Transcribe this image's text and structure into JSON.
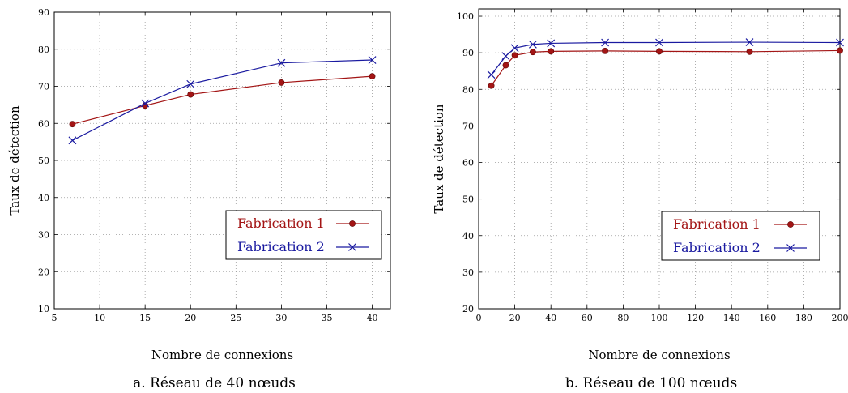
{
  "colors": {
    "series1": "#a31515",
    "series2": "#1a1aa0",
    "grid": "#9a9a9a"
  },
  "chart_data": [
    {
      "type": "line",
      "caption": "a. Réseau de 40 nœuds",
      "xlabel": "Nombre de connexions",
      "ylabel": "Taux de détection",
      "xlim": [
        5,
        42
      ],
      "ylim": [
        10,
        90
      ],
      "xticks": [
        5,
        10,
        15,
        20,
        25,
        30,
        35,
        40
      ],
      "yticks": [
        10,
        20,
        30,
        40,
        50,
        60,
        70,
        80,
        90
      ],
      "grid": true,
      "legend_position": "bottom-right",
      "series": [
        {
          "name": "Fabrication 1",
          "marker": "dot",
          "x": [
            7,
            15,
            20,
            30,
            40
          ],
          "y": [
            59.8,
            64.8,
            67.8,
            71.0,
            72.7
          ]
        },
        {
          "name": "Fabrication 2",
          "marker": "cross",
          "x": [
            7,
            15,
            20,
            30,
            40
          ],
          "y": [
            55.4,
            65.4,
            70.6,
            76.3,
            77.1
          ]
        }
      ]
    },
    {
      "type": "line",
      "caption": "b. Réseau de 100 nœuds",
      "xlabel": "Nombre de connexions",
      "ylabel": "Taux de détection",
      "xlim": [
        0,
        200
      ],
      "ylim": [
        20,
        102
      ],
      "xticks": [
        0,
        20,
        40,
        60,
        80,
        100,
        120,
        140,
        160,
        180,
        200
      ],
      "yticks": [
        20,
        30,
        40,
        50,
        60,
        70,
        80,
        90,
        100
      ],
      "grid": true,
      "legend_position": "bottom-right",
      "series": [
        {
          "name": "Fabrication 1",
          "marker": "dot",
          "x": [
            7,
            15,
            20,
            30,
            40,
            70,
            100,
            150,
            200
          ],
          "y": [
            81.0,
            86.6,
            89.3,
            90.2,
            90.4,
            90.5,
            90.4,
            90.3,
            90.6
          ]
        },
        {
          "name": "Fabrication 2",
          "marker": "cross",
          "x": [
            7,
            15,
            20,
            30,
            40,
            70,
            100,
            150,
            200
          ],
          "y": [
            84.0,
            89.1,
            91.3,
            92.3,
            92.6,
            92.8,
            92.8,
            92.9,
            92.8
          ]
        }
      ]
    }
  ]
}
